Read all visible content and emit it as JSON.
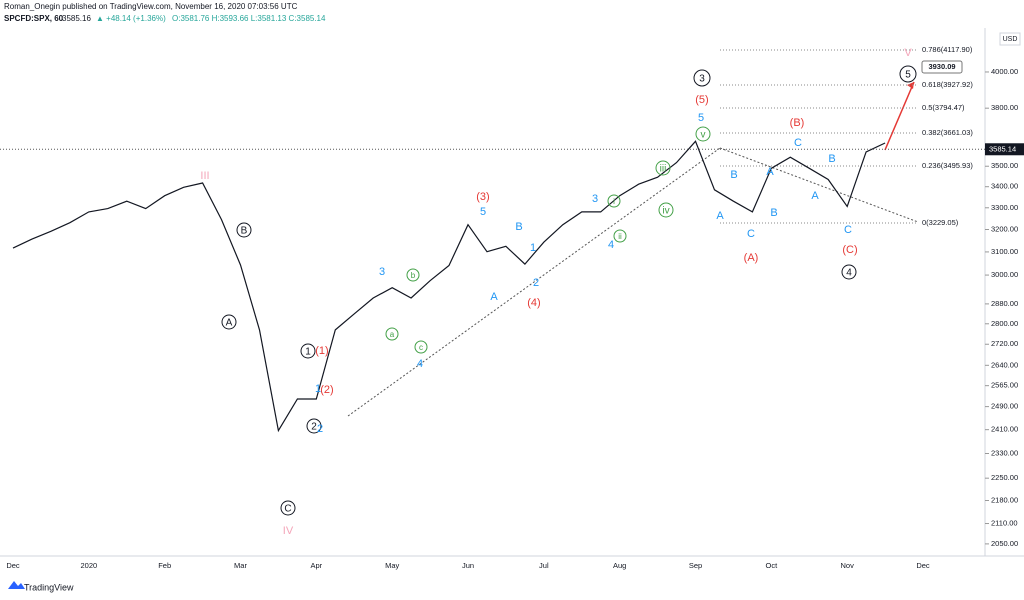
{
  "header": {
    "publisher": "Roman_Onegin published on TradingView.com, November 16, 2020 07:03:56 UTC",
    "symbol": "SPCFD:SPX, 60",
    "price": "3585.16",
    "change": "▲ +48.14 (+1.36%)",
    "ohlc": "O:3581.76 H:3593.66 L:3581.13 C:3585.14",
    "currency": "USD",
    "footer": "TradingView"
  },
  "chart_data": {
    "type": "line",
    "color": "#131722",
    "log_scale": true,
    "categories": [
      "Dec",
      null,
      null,
      null,
      "2020",
      null,
      null,
      null,
      "Feb",
      null,
      null,
      null,
      "Mar",
      null,
      null,
      null,
      "Apr",
      null,
      null,
      null,
      "May",
      null,
      null,
      null,
      "Jun",
      null,
      null,
      null,
      "Jul",
      null,
      null,
      null,
      "Aug",
      null,
      null,
      null,
      "Sep",
      null,
      null,
      null,
      "Oct",
      null,
      null,
      null,
      "Nov",
      null,
      null,
      null,
      "Dec",
      null,
      null,
      null
    ],
    "values": [
      3117,
      3157,
      3192,
      3231,
      3281,
      3296,
      3331,
      3296,
      3357,
      3397,
      3418,
      3245,
      3043,
      2776,
      2407,
      2517,
      2517,
      2776,
      2840,
      2904,
      2947,
      2904,
      2976,
      3041,
      3222,
      3101,
      3125,
      3047,
      3143,
      3222,
      3281,
      3281,
      3357,
      3412,
      3446,
      3518,
      3626,
      3385,
      3331,
      3281,
      3490,
      3545,
      3490,
      3435,
      3306,
      3572,
      3617,
      null,
      null,
      null,
      null,
      null
    ],
    "ylim": [
      2018,
      4245
    ],
    "yticks": [
      {
        "value": 2050,
        "label": "2050.00"
      },
      {
        "value": 2110,
        "label": "2110.00"
      },
      {
        "value": 2180,
        "label": "2180.00"
      },
      {
        "value": 2250,
        "label": "2250.00"
      },
      {
        "value": 2330,
        "label": "2330.00"
      },
      {
        "value": 2410,
        "label": "2410.00"
      },
      {
        "value": 2490,
        "label": "2490.00"
      },
      {
        "value": 2565,
        "label": "2565.00"
      },
      {
        "value": 2640,
        "label": "2640.00"
      },
      {
        "value": 2720,
        "label": "2720.00"
      },
      {
        "value": 2800,
        "label": "2800.00"
      },
      {
        "value": 2880,
        "label": "2880.00"
      },
      {
        "value": 3000,
        "label": "3000.00"
      },
      {
        "value": 3100,
        "label": "3100.00"
      },
      {
        "value": 3200,
        "label": "3200.00"
      },
      {
        "value": 3300,
        "label": "3300.00"
      },
      {
        "value": 3400,
        "label": "3400.00"
      },
      {
        "value": 3500,
        "label": "3500.00"
      },
      {
        "value": 3800,
        "label": "3800.00"
      },
      {
        "value": 4000,
        "label": "4000.00"
      }
    ],
    "last_price": {
      "value": 3585.14,
      "label": "3585.14"
    },
    "target": "3930.09",
    "fib_levels": [
      "0.786(4117.90)",
      "0.618(3927.92)",
      "0.5(3794.47)",
      "0.382(3661.03)",
      "0.236(3495.93)",
      "0(3229.05)"
    ],
    "annotations": [
      "3",
      "5",
      "4",
      "1",
      "2",
      "C",
      "A",
      "B",
      "(5)",
      "(3)",
      "(4)",
      "(1)",
      "(2)",
      "(B)",
      "(A)",
      "(C)",
      "5",
      "5",
      "3",
      "3",
      "1",
      "2",
      "A",
      "B",
      "4",
      "4",
      "1",
      "2",
      "A",
      "B",
      "C",
      "A",
      "B",
      "C",
      "A",
      "B",
      "C",
      "v",
      "iii",
      "iv",
      "i",
      "ii",
      "b",
      "a",
      "c",
      "III",
      "IV",
      "V"
    ]
  }
}
